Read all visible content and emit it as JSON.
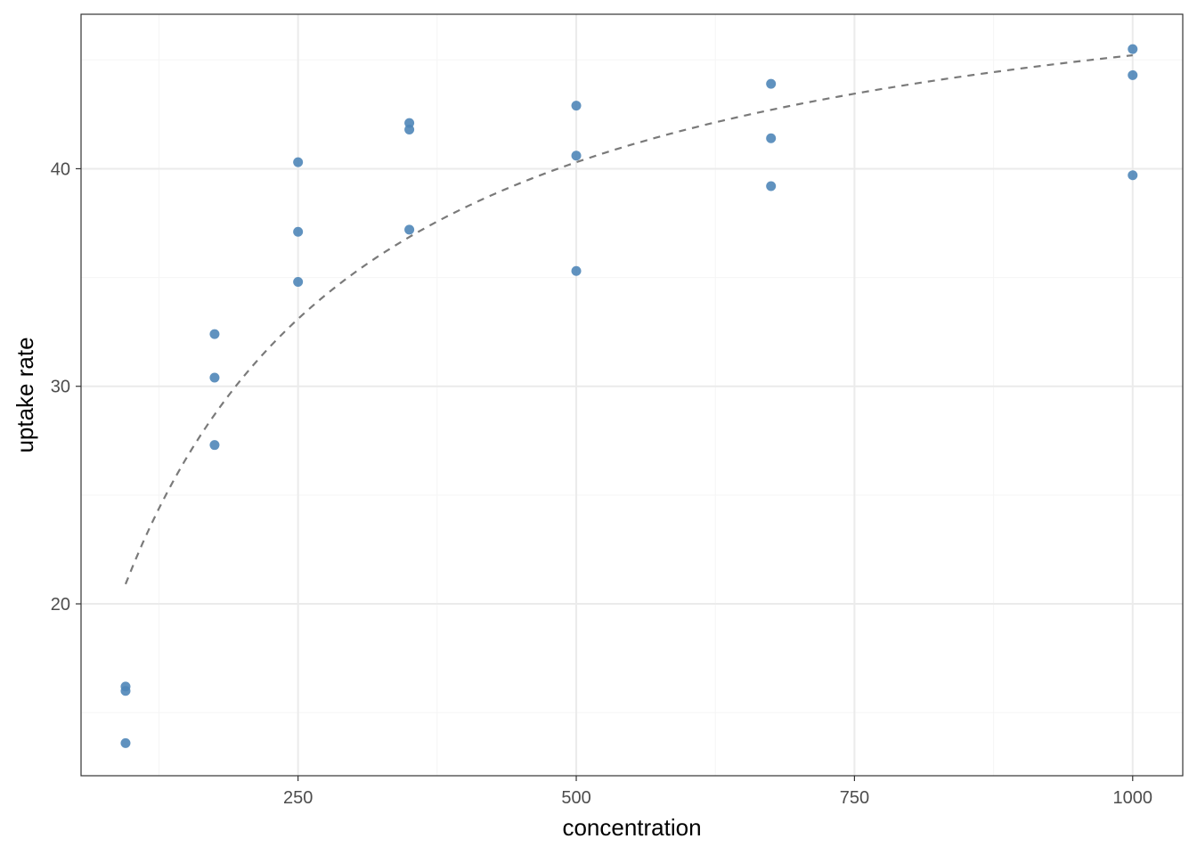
{
  "chart_data": {
    "type": "scatter",
    "title": "",
    "xlabel": "concentration",
    "ylabel": "uptake rate",
    "xlim": [
      55,
      1045
    ],
    "ylim": [
      12.1,
      47.1
    ],
    "x_ticks": [
      250,
      500,
      750,
      1000
    ],
    "y_ticks": [
      20,
      30,
      40
    ],
    "x_tick_labels": [
      "250",
      "500",
      "750",
      "1000"
    ],
    "y_tick_labels": [
      "20",
      "30",
      "40"
    ],
    "x_minor": [
      125,
      375,
      625,
      875
    ],
    "y_minor": [
      15,
      25,
      35,
      45
    ],
    "grid": true,
    "legend": "none",
    "points": [
      {
        "x": 95,
        "y": 16.2
      },
      {
        "x": 95,
        "y": 16.0
      },
      {
        "x": 95,
        "y": 13.6
      },
      {
        "x": 175,
        "y": 32.4
      },
      {
        "x": 175,
        "y": 30.4
      },
      {
        "x": 175,
        "y": 27.3
      },
      {
        "x": 250,
        "y": 40.3
      },
      {
        "x": 250,
        "y": 37.1
      },
      {
        "x": 250,
        "y": 34.8
      },
      {
        "x": 350,
        "y": 42.1
      },
      {
        "x": 350,
        "y": 41.8
      },
      {
        "x": 350,
        "y": 37.2
      },
      {
        "x": 500,
        "y": 42.9
      },
      {
        "x": 500,
        "y": 40.6
      },
      {
        "x": 500,
        "y": 35.3
      },
      {
        "x": 675,
        "y": 43.9
      },
      {
        "x": 675,
        "y": 41.4
      },
      {
        "x": 675,
        "y": 39.2
      },
      {
        "x": 1000,
        "y": 45.5
      },
      {
        "x": 1000,
        "y": 44.3
      },
      {
        "x": 1000,
        "y": 39.7
      }
    ],
    "fit_curve": {
      "style": "dashed",
      "model": "Michaelis-Menten",
      "Vmax": 51.5,
      "Km": 139,
      "x_range": [
        95,
        1000
      ]
    },
    "colors": {
      "points": "#4f86b8",
      "fit": "#7a7a7a",
      "grid_major": "#ebebeb",
      "grid_minor": "#f5f5f5",
      "panel_border": "#333333"
    }
  }
}
